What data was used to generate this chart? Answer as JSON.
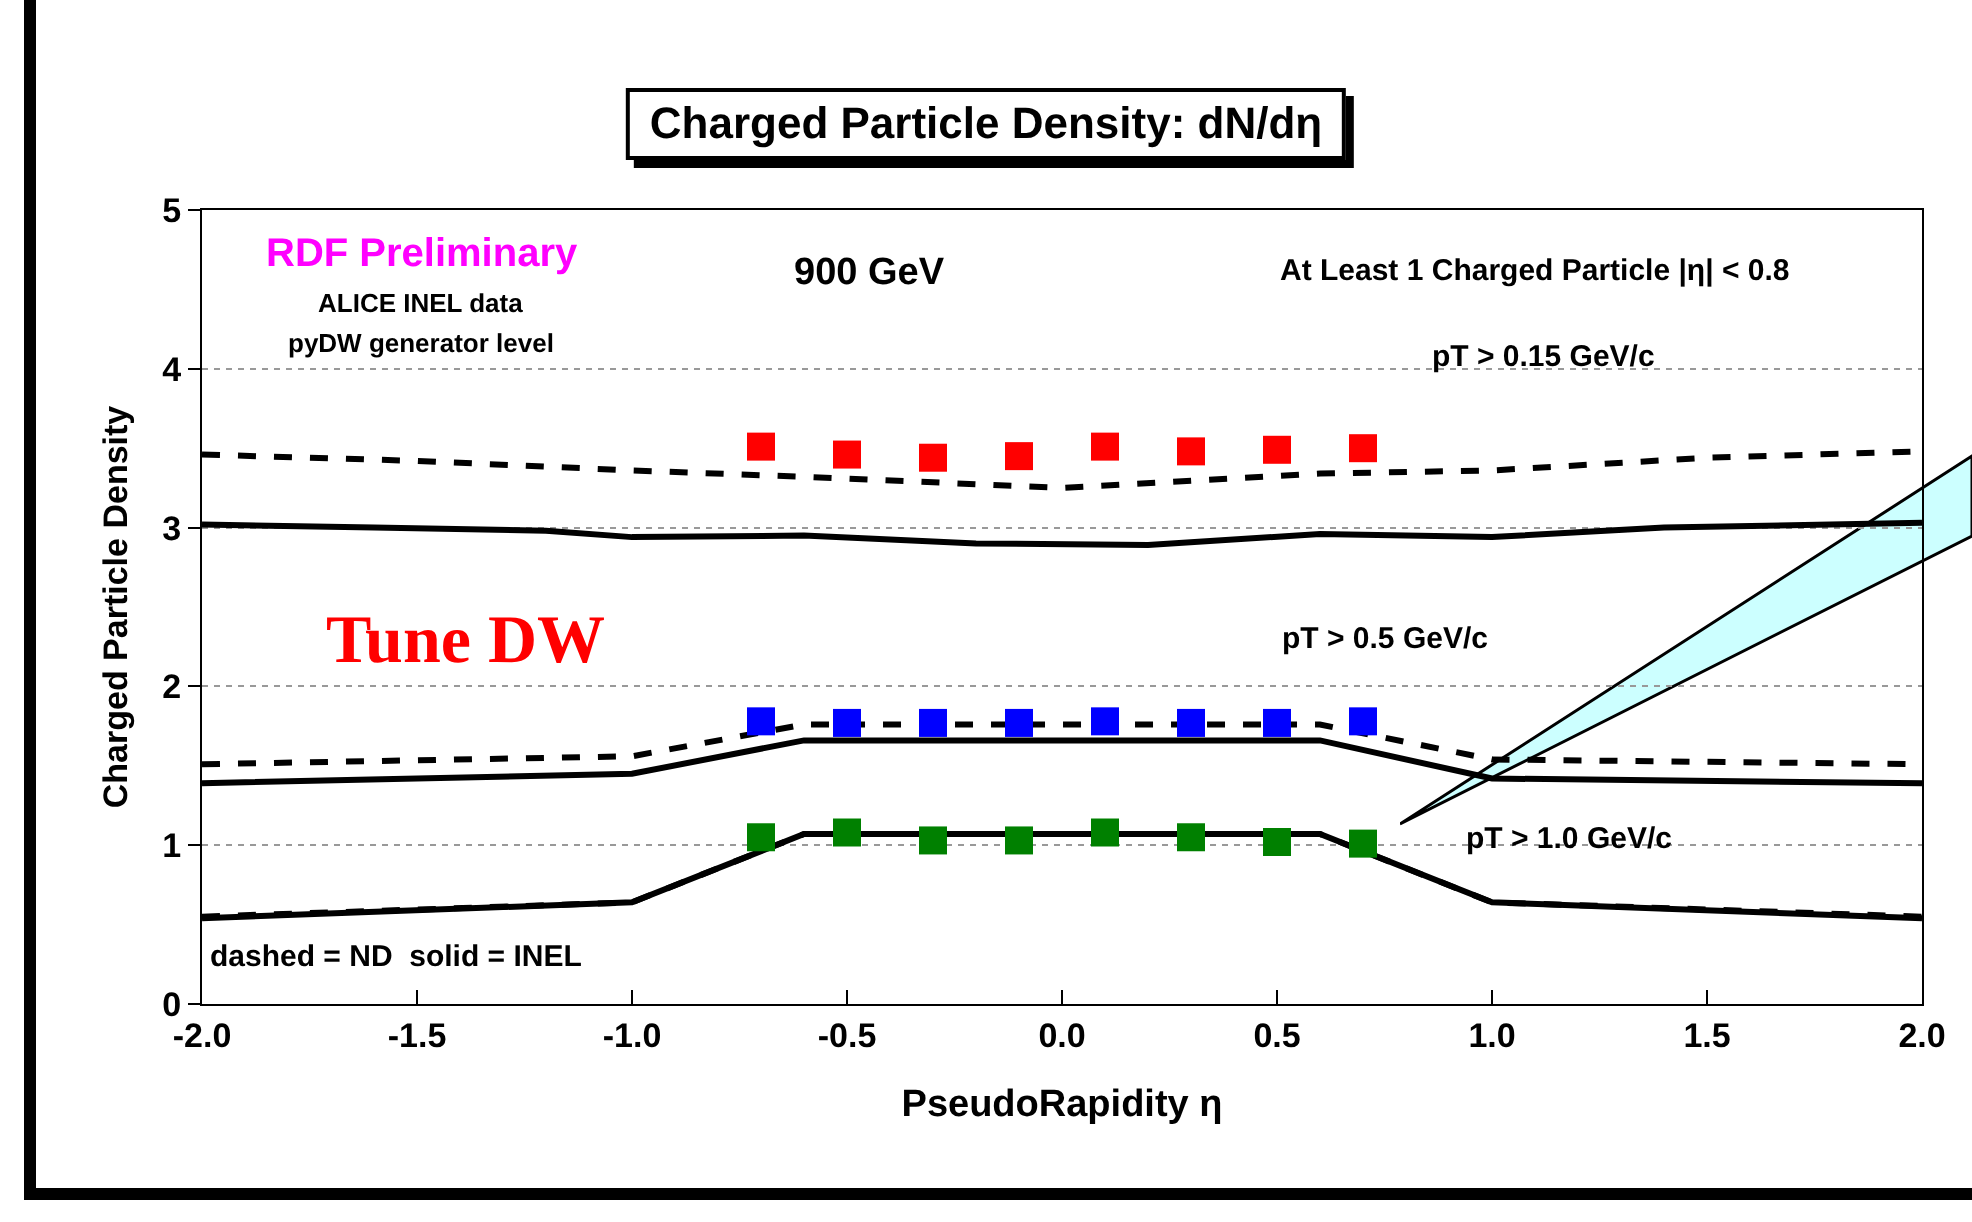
{
  "chart_data": {
    "type": "line",
    "title": "Charged Particle Density: dN/dη",
    "xlabel": "PseudoRapidity η",
    "ylabel": "Charged Particle Density",
    "xlim": [
      -2,
      2
    ],
    "xticks": [
      {
        "value": -2,
        "label": "-2.0"
      },
      {
        "value": -1.5,
        "label": "-1.5"
      },
      {
        "value": -1,
        "label": "-1.0"
      },
      {
        "value": -0.5,
        "label": "-0.5"
      },
      {
        "value": 0,
        "label": "0.0"
      },
      {
        "value": 0.5,
        "label": "0.5"
      },
      {
        "value": 1,
        "label": "1.0"
      },
      {
        "value": 1.5,
        "label": "1.5"
      },
      {
        "value": 2,
        "label": "2.0"
      }
    ],
    "ylim": [
      0,
      5
    ],
    "yticks": [
      0,
      1,
      2,
      3,
      4,
      5
    ],
    "grid": "y",
    "series": [
      {
        "type": "line",
        "line_style": "solid",
        "marker": "none",
        "color": "#000000",
        "x": [
          -2,
          -1.6,
          -1.2,
          -1,
          -0.6,
          -0.2,
          0.2,
          0.6,
          1,
          1.4,
          2
        ],
        "values": [
          3.02,
          3.0,
          2.98,
          2.94,
          2.95,
          2.9,
          2.89,
          2.96,
          2.94,
          3.0,
          3.03
        ]
      },
      {
        "type": "line",
        "line_style": "dashed",
        "marker": "none",
        "color": "#000000",
        "x": [
          -2,
          -1.5,
          -1,
          -0.6,
          0,
          0.6,
          1,
          1.5,
          2
        ],
        "values": [
          3.46,
          3.42,
          3.36,
          3.32,
          3.25,
          3.34,
          3.36,
          3.44,
          3.48
        ]
      },
      {
        "type": "line",
        "line_style": "solid",
        "marker": "none",
        "color": "#000000",
        "x": [
          -2,
          -1,
          -0.6,
          0.6,
          1,
          2
        ],
        "values": [
          1.39,
          1.45,
          1.66,
          1.66,
          1.42,
          1.39
        ]
      },
      {
        "type": "line",
        "line_style": "dashed",
        "marker": "none",
        "color": "#000000",
        "x": [
          -2,
          -1,
          -0.6,
          0.6,
          1,
          2
        ],
        "values": [
          1.51,
          1.56,
          1.76,
          1.76,
          1.54,
          1.51
        ]
      },
      {
        "type": "line",
        "line_style": "solid",
        "marker": "none",
        "color": "#000000",
        "x": [
          -2,
          -1,
          -0.6,
          0.6,
          1,
          2
        ],
        "values": [
          0.54,
          0.64,
          1.07,
          1.07,
          0.64,
          0.54
        ]
      },
      {
        "type": "line",
        "line_style": "dashed",
        "marker": "none",
        "color": "#000000",
        "x": [
          -2,
          -1,
          -0.6,
          0.6,
          1,
          2
        ],
        "values": [
          0.55,
          0.64,
          1.07,
          1.07,
          0.64,
          0.55
        ]
      },
      {
        "type": "scatter",
        "marker": "square",
        "color": "#ff0000",
        "x": [
          -0.7,
          -0.5,
          -0.3,
          -0.1,
          0.1,
          0.3,
          0.5,
          0.7
        ],
        "values": [
          3.51,
          3.46,
          3.44,
          3.45,
          3.51,
          3.48,
          3.49,
          3.5
        ]
      },
      {
        "type": "scatter",
        "marker": "square",
        "color": "#0000ff",
        "x": [
          -0.7,
          -0.5,
          -0.3,
          -0.1,
          0.1,
          0.3,
          0.5,
          0.7
        ],
        "values": [
          1.78,
          1.77,
          1.77,
          1.77,
          1.78,
          1.77,
          1.77,
          1.78
        ]
      },
      {
        "type": "scatter",
        "marker": "square",
        "color": "#008000",
        "x": [
          -0.7,
          -0.5,
          -0.3,
          -0.1,
          0.1,
          0.3,
          0.5,
          0.7
        ],
        "values": [
          1.05,
          1.08,
          1.03,
          1.03,
          1.08,
          1.05,
          1.02,
          1.01
        ]
      }
    ],
    "annotations": [
      "RDF Preliminary",
      "ALICE INEL data",
      "pyDW generator level",
      "900 GeV",
      "At Least 1 Charged Particle |η| < 0.8",
      "pT > 0.15 GeV/c",
      "Tune DW",
      "pT > 0.5 GeV/c",
      "pT > 1.0 GeV/c",
      "dashed = ND  solid = INEL"
    ]
  }
}
